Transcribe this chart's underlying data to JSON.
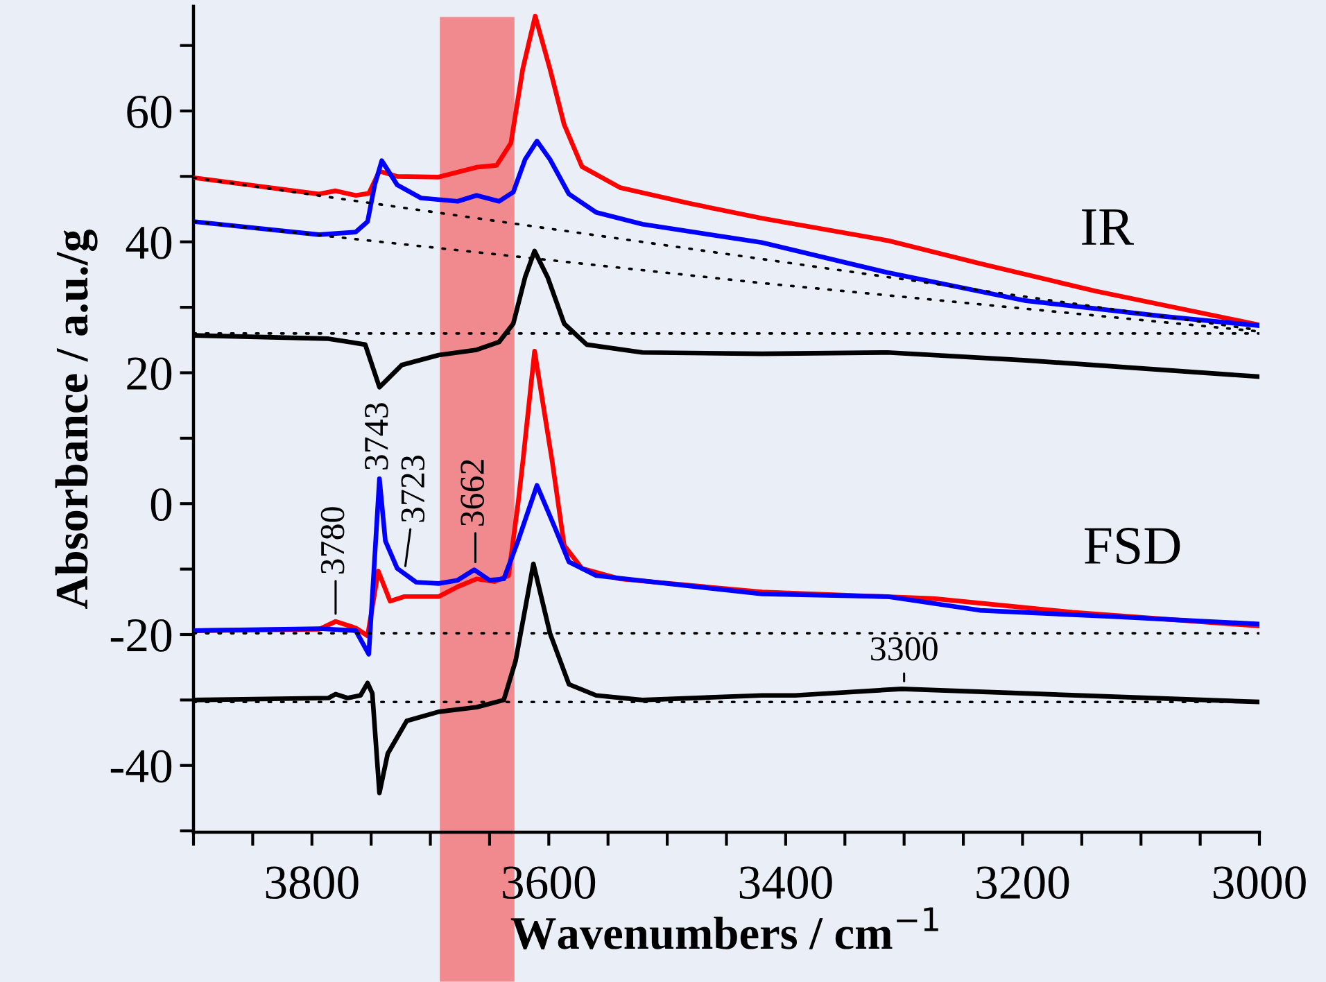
{
  "chart_data": {
    "type": "line",
    "xlabel": "Wavenumbers / cm$^{−1}$",
    "ylabel": "Absorbance / a.u./g",
    "xlim": [
      3900,
      3000
    ],
    "ylim": [
      -50.2,
      76
    ],
    "xticks": [
      {
        "value": 3900,
        "label": null
      },
      {
        "value": 3850,
        "label": null
      },
      3800,
      {
        "value": 3750,
        "label": null
      },
      {
        "value": 3700,
        "label": null
      },
      {
        "value": 3650,
        "label": null
      },
      3600,
      {
        "value": 3550,
        "label": null
      },
      {
        "value": 3500,
        "label": null
      },
      {
        "value": 3450,
        "label": null
      },
      3400,
      {
        "value": 3350,
        "label": null
      },
      {
        "value": 3300,
        "label": null
      },
      {
        "value": 3250,
        "label": null
      },
      3200,
      {
        "value": 3150,
        "label": null
      },
      {
        "value": 3100,
        "label": null
      },
      {
        "value": 3050,
        "label": null
      },
      3000
    ],
    "yticks": [
      {
        "value": -50,
        "label": null
      },
      -40,
      {
        "value": -30,
        "label": null
      },
      -20,
      {
        "value": -10,
        "label": null
      },
      0,
      {
        "value": 10,
        "label": null
      },
      20,
      {
        "value": 30,
        "label": null
      },
      40,
      {
        "value": 50,
        "label": null
      },
      60,
      {
        "value": 70,
        "label": null
      }
    ],
    "bands": [
      {
        "axis": "x",
        "from": 3692,
        "to": 3629,
        "color": "#f08a8e"
      }
    ],
    "series": [
      {
        "type": "line",
        "color": "#ff0000",
        "x": [
          3900,
          3794,
          3780,
          3763,
          3752,
          3743,
          3728,
          3693,
          3661,
          3644,
          3632,
          3622,
          3611.5,
          3599,
          3587,
          3572,
          3540,
          3482,
          3420,
          3314,
          3236,
          3139,
          3000
        ],
        "values": [
          49.8,
          47.3,
          47.8,
          47.1,
          47.4,
          50.8,
          50.0,
          49.9,
          51.4,
          51.7,
          55.1,
          66.4,
          74.5,
          66.4,
          57.9,
          51.5,
          48.3,
          45.9,
          43.6,
          40.2,
          36.7,
          32.5,
          27.3
        ]
      },
      {
        "type": "line",
        "color": "#0000ff",
        "x": [
          3900,
          3794,
          3763,
          3753,
          3747,
          3741,
          3728,
          3708,
          3677,
          3661,
          3642,
          3630,
          3620,
          3610,
          3599,
          3583,
          3560,
          3521,
          3420,
          3314,
          3197,
          3080,
          3000
        ],
        "values": [
          43.1,
          41.1,
          41.5,
          43.1,
          48.7,
          52.4,
          48.7,
          46.7,
          46.2,
          47.1,
          46.2,
          47.6,
          52.6,
          55.4,
          52.6,
          47.3,
          44.5,
          42.7,
          39.9,
          35.3,
          31.0,
          28.6,
          27.2
        ]
      },
      {
        "type": "line",
        "color": "#000000",
        "x": [
          3900,
          3786,
          3755,
          3743,
          3724,
          3693,
          3661,
          3642,
          3630,
          3620,
          3612,
          3601,
          3587,
          3568,
          3521,
          3420,
          3314,
          3197,
          3000
        ],
        "values": [
          25.7,
          25.2,
          24.3,
          17.8,
          21.2,
          22.7,
          23.5,
          24.7,
          27.5,
          34.6,
          38.6,
          34.6,
          27.5,
          24.3,
          23.1,
          22.9,
          23.1,
          21.9,
          19.4
        ]
      },
      {
        "type": "line",
        "color": "#000000",
        "line_style": "dotted",
        "x": [
          3900,
          3000
        ],
        "values": [
          49.8,
          26.5
        ]
      },
      {
        "type": "line",
        "color": "#000000",
        "line_style": "dotted",
        "x": [
          3900,
          3420,
          3000
        ],
        "values": [
          43.1,
          33.7,
          26.3
        ]
      },
      {
        "type": "line",
        "color": "#000000",
        "line_style": "dotted",
        "x": [
          3900,
          3000
        ],
        "values": [
          26.0,
          26.0
        ]
      },
      {
        "type": "line",
        "color": "#ff0000",
        "x": [
          3900,
          3794,
          3780,
          3763,
          3753,
          3744,
          3734,
          3722,
          3693,
          3677,
          3661,
          3646,
          3634,
          3626,
          3622,
          3612,
          3597,
          3587,
          3572,
          3540,
          3420,
          3275,
          3158,
          3000
        ],
        "values": [
          -19.4,
          -19.2,
          -18.0,
          -19.0,
          -20.2,
          -10.3,
          -14.9,
          -14.2,
          -14.2,
          -12.7,
          -11.5,
          -11.9,
          -11.0,
          0.0,
          6.3,
          23.3,
          6.3,
          -6.4,
          -9.9,
          -11.5,
          -13.5,
          -14.5,
          -16.6,
          -18.7
        ]
      },
      {
        "type": "line",
        "color": "#0000ff",
        "x": [
          3900,
          3794,
          3763,
          3752,
          3749,
          3743,
          3738,
          3728,
          3712,
          3693,
          3677,
          3663,
          3650,
          3638,
          3626,
          3610,
          3595,
          3583,
          3560,
          3420,
          3314,
          3236,
          3119,
          3000
        ],
        "values": [
          -19.4,
          -19.1,
          -19.4,
          -23.0,
          -14.2,
          3.8,
          -5.7,
          -9.9,
          -12.0,
          -12.2,
          -11.7,
          -10.1,
          -11.7,
          -11.5,
          -5.7,
          2.8,
          -3.6,
          -8.9,
          -11.0,
          -13.8,
          -14.2,
          -16.3,
          -17.3,
          -18.4
        ]
      },
      {
        "type": "line",
        "color": "#000000",
        "x": [
          3900,
          3786,
          3780,
          3770,
          3759,
          3753,
          3749,
          3743,
          3736,
          3720,
          3693,
          3661,
          3638,
          3628,
          3613,
          3599,
          3583,
          3560,
          3521,
          3420,
          3392,
          3302,
          3197,
          3000
        ],
        "values": [
          -30.0,
          -29.7,
          -29.1,
          -29.7,
          -29.3,
          -27.4,
          -29.0,
          -44.2,
          -38.2,
          -33.2,
          -31.8,
          -31.1,
          -30.0,
          -24.0,
          -9.2,
          -19.8,
          -27.6,
          -29.3,
          -30.0,
          -29.3,
          -29.3,
          -28.3,
          -29.0,
          -30.3
        ]
      },
      {
        "type": "line",
        "color": "#000000",
        "line_style": "dotted",
        "x": [
          3900,
          3000
        ],
        "values": [
          -19.8,
          -19.8
        ]
      },
      {
        "type": "line",
        "color": "#000000",
        "line_style": "dotted",
        "x": [
          3900,
          3000
        ],
        "values": [
          -30.3,
          -30.3
        ]
      }
    ],
    "annotations": [
      {
        "text": "3780",
        "x": 3780,
        "y": -18.0
      },
      {
        "text": "3743",
        "x": 3743,
        "y": 3.8
      },
      {
        "text": "3723",
        "x": 3722,
        "y": -10.7
      },
      {
        "text": "3662",
        "x": 3662,
        "y": -10.1
      },
      {
        "text": "3300",
        "x": 3300,
        "y": -28.3
      },
      "IR",
      "FSD"
    ]
  }
}
